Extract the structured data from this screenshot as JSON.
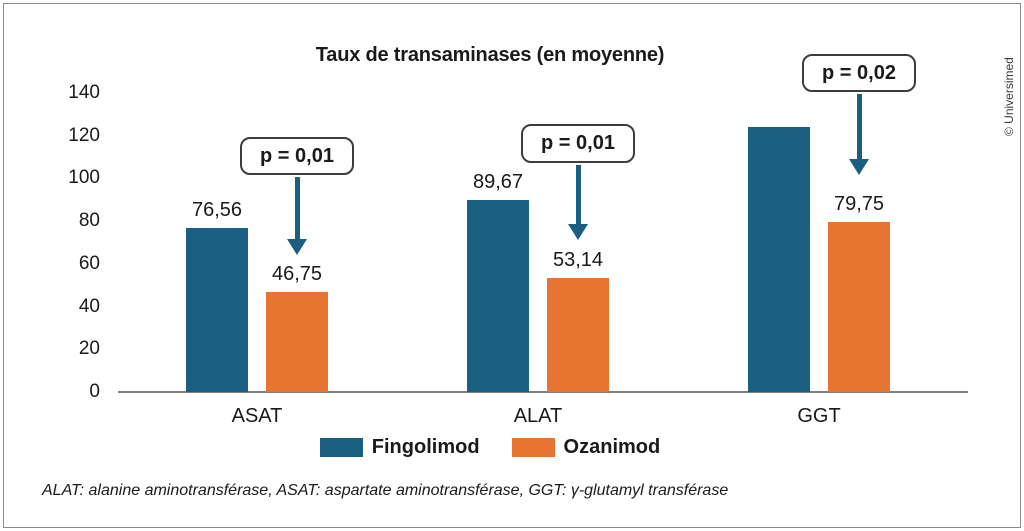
{
  "figure": {
    "footnote": "ALAT: alanine aminotransférase, ASAT: aspartate aminotransférase, GGT: γ-glutamyl transférase",
    "credit": "© Universimed"
  },
  "chart_data": {
    "type": "bar",
    "title": "Taux de transaminases (en moyenne)",
    "categories": [
      "ASAT",
      "ALAT",
      "GGT"
    ],
    "series": [
      {
        "name": "Fingolimod",
        "color": "#1A5F82",
        "values": [
          76.56,
          89.67,
          124
        ],
        "value_labels": [
          "76,56",
          "89,67",
          ""
        ]
      },
      {
        "name": "Ozanimod",
        "color": "#E87431",
        "values": [
          46.75,
          53.14,
          79.75
        ],
        "value_labels": [
          "46,75",
          "53,14",
          "79,75"
        ]
      }
    ],
    "annotations": [
      {
        "category": "ASAT",
        "text": "p = 0,01"
      },
      {
        "category": "ALAT",
        "text": "p = 0,01"
      },
      {
        "category": "GGT",
        "text": "p = 0,02"
      }
    ],
    "y_axis": {
      "min": 0,
      "max": 140,
      "step": 20,
      "tick_labels": [
        "0",
        "20",
        "40",
        "60",
        "80",
        "100",
        "120",
        "140"
      ]
    },
    "legend": {
      "position": "bottom",
      "entries": [
        "Fingolimod",
        "Ozanimod"
      ]
    },
    "gridlines": false,
    "colors": {
      "arrow": "#1A5F82",
      "axis_line": "#7F7F7F",
      "callout_border": "#3D3D3D",
      "text": "#1A1A1A"
    }
  }
}
